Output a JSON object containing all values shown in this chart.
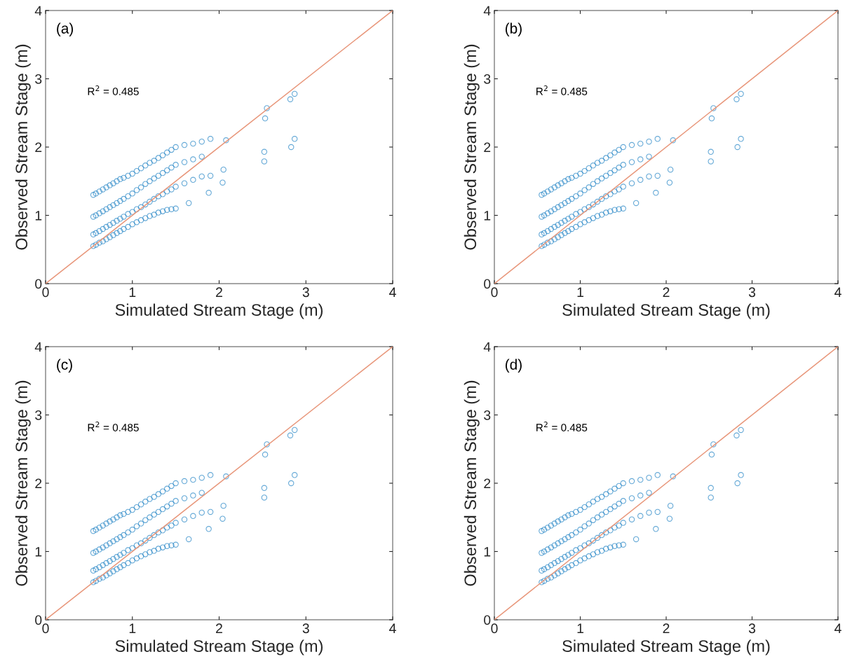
{
  "chart_data": [
    {
      "type": "scatter",
      "xlabel": "Simulated Stream Stage (m)",
      "ylabel": "Observed Stream Stage (m)",
      "annotations": [
        "(a)",
        "R$^{2}$ = 0.485"
      ],
      "xlim": [
        0,
        4
      ],
      "ylim": [
        0,
        4
      ],
      "xticks": [
        0,
        1,
        2,
        3,
        4
      ],
      "yticks": [
        0,
        1,
        2,
        3,
        4
      ],
      "grid": false,
      "series": [
        {
          "marker": "circle",
          "color": "#0072bd",
          "x": [
            0.55,
            0.58,
            0.62,
            0.66,
            0.7,
            0.74,
            0.78,
            0.82,
            0.86,
            0.9,
            0.95,
            1.0,
            1.05,
            1.1,
            1.15,
            1.2,
            1.25,
            1.3,
            1.35,
            1.4,
            1.45,
            1.5,
            1.6,
            1.7,
            1.8,
            1.9,
            0.55,
            0.58,
            0.62,
            0.66,
            0.7,
            0.74,
            0.78,
            0.82,
            0.86,
            0.9,
            0.95,
            1.0,
            1.05,
            1.1,
            1.15,
            1.2,
            1.25,
            1.3,
            1.35,
            1.4,
            1.45,
            1.5,
            1.6,
            1.7,
            1.8,
            0.55,
            0.58,
            0.62,
            0.66,
            0.7,
            0.74,
            0.78,
            0.82,
            0.86,
            0.9,
            0.95,
            1.0,
            1.05,
            1.1,
            1.15,
            1.2,
            1.25,
            1.3,
            1.35,
            1.4,
            1.45,
            1.5,
            1.6,
            1.7,
            1.8,
            0.55,
            0.58,
            0.62,
            0.66,
            0.7,
            0.74,
            0.78,
            0.82,
            0.86,
            0.9,
            0.95,
            1.0,
            1.05,
            1.1,
            1.15,
            1.2,
            1.25,
            1.3,
            1.35,
            1.4,
            1.45,
            1.5,
            2.55,
            2.53,
            2.52,
            2.52,
            2.82,
            2.87,
            2.87,
            2.83,
            2.08,
            2.05,
            2.04,
            1.9,
            1.88,
            1.65
          ],
          "values": [
            1.3,
            1.32,
            1.35,
            1.38,
            1.41,
            1.44,
            1.47,
            1.5,
            1.53,
            1.55,
            1.58,
            1.61,
            1.65,
            1.69,
            1.73,
            1.77,
            1.8,
            1.84,
            1.88,
            1.92,
            1.96,
            2.0,
            2.03,
            2.05,
            2.08,
            2.12,
            0.98,
            1.0,
            1.03,
            1.06,
            1.09,
            1.12,
            1.15,
            1.18,
            1.21,
            1.24,
            1.28,
            1.32,
            1.37,
            1.41,
            1.46,
            1.5,
            1.54,
            1.58,
            1.62,
            1.66,
            1.7,
            1.74,
            1.78,
            1.82,
            1.86,
            0.72,
            0.74,
            0.77,
            0.8,
            0.83,
            0.86,
            0.89,
            0.92,
            0.95,
            0.98,
            1.02,
            1.05,
            1.09,
            1.12,
            1.16,
            1.2,
            1.24,
            1.28,
            1.31,
            1.35,
            1.38,
            1.42,
            1.47,
            1.52,
            1.57,
            0.55,
            0.57,
            0.6,
            0.62,
            0.65,
            0.68,
            0.71,
            0.74,
            0.77,
            0.8,
            0.83,
            0.87,
            0.9,
            0.93,
            0.96,
            0.99,
            1.01,
            1.04,
            1.06,
            1.08,
            1.09,
            1.1,
            2.57,
            2.42,
            1.93,
            1.79,
            2.7,
            2.78,
            2.12,
            2.0,
            2.1,
            1.67,
            1.48,
            1.58,
            1.33,
            1.18
          ]
        },
        {
          "type": "line",
          "color": "#e8967a",
          "x": [
            0,
            4
          ],
          "values": [
            0,
            4
          ]
        }
      ]
    },
    {
      "type": "scatter",
      "xlabel": "Simulated Stream Stage (m)",
      "ylabel": "Observed Stream Stage (m)",
      "annotations": [
        "(b)",
        "R$^{2}$ = 0.485"
      ],
      "xlim": [
        0,
        4
      ],
      "ylim": [
        0,
        4
      ],
      "xticks": [
        0,
        1,
        2,
        3,
        4
      ],
      "yticks": [
        0,
        1,
        2,
        3,
        4
      ],
      "grid": false,
      "series": [
        {
          "marker": "circle",
          "color": "#0072bd",
          "x": [
            0.55,
            0.58,
            0.62,
            0.66,
            0.7,
            0.74,
            0.78,
            0.82,
            0.86,
            0.9,
            0.95,
            1.0,
            1.05,
            1.1,
            1.15,
            1.2,
            1.25,
            1.3,
            1.35,
            1.4,
            1.45,
            1.5,
            1.6,
            1.7,
            1.8,
            1.9,
            0.55,
            0.58,
            0.62,
            0.66,
            0.7,
            0.74,
            0.78,
            0.82,
            0.86,
            0.9,
            0.95,
            1.0,
            1.05,
            1.1,
            1.15,
            1.2,
            1.25,
            1.3,
            1.35,
            1.4,
            1.45,
            1.5,
            1.6,
            1.7,
            1.8,
            0.55,
            0.58,
            0.62,
            0.66,
            0.7,
            0.74,
            0.78,
            0.82,
            0.86,
            0.9,
            0.95,
            1.0,
            1.05,
            1.1,
            1.15,
            1.2,
            1.25,
            1.3,
            1.35,
            1.4,
            1.45,
            1.5,
            1.6,
            1.7,
            1.8,
            0.55,
            0.58,
            0.62,
            0.66,
            0.7,
            0.74,
            0.78,
            0.82,
            0.86,
            0.9,
            0.95,
            1.0,
            1.05,
            1.1,
            1.15,
            1.2,
            1.25,
            1.3,
            1.35,
            1.4,
            1.45,
            1.5,
            2.55,
            2.53,
            2.52,
            2.52,
            2.82,
            2.87,
            2.87,
            2.83,
            2.08,
            2.05,
            2.04,
            1.9,
            1.88,
            1.65
          ],
          "values": [
            1.3,
            1.32,
            1.35,
            1.38,
            1.41,
            1.44,
            1.47,
            1.5,
            1.53,
            1.55,
            1.58,
            1.61,
            1.65,
            1.69,
            1.73,
            1.77,
            1.8,
            1.84,
            1.88,
            1.92,
            1.96,
            2.0,
            2.03,
            2.05,
            2.08,
            2.12,
            0.98,
            1.0,
            1.03,
            1.06,
            1.09,
            1.12,
            1.15,
            1.18,
            1.21,
            1.24,
            1.28,
            1.32,
            1.37,
            1.41,
            1.46,
            1.5,
            1.54,
            1.58,
            1.62,
            1.66,
            1.7,
            1.74,
            1.78,
            1.82,
            1.86,
            0.72,
            0.74,
            0.77,
            0.8,
            0.83,
            0.86,
            0.89,
            0.92,
            0.95,
            0.98,
            1.02,
            1.05,
            1.09,
            1.12,
            1.16,
            1.2,
            1.24,
            1.28,
            1.31,
            1.35,
            1.38,
            1.42,
            1.47,
            1.52,
            1.57,
            0.55,
            0.57,
            0.6,
            0.62,
            0.65,
            0.68,
            0.71,
            0.74,
            0.77,
            0.8,
            0.83,
            0.87,
            0.9,
            0.93,
            0.96,
            0.99,
            1.01,
            1.04,
            1.06,
            1.08,
            1.09,
            1.1,
            2.57,
            2.42,
            1.93,
            1.79,
            2.7,
            2.78,
            2.12,
            2.0,
            2.1,
            1.67,
            1.48,
            1.58,
            1.33,
            1.18
          ]
        },
        {
          "type": "line",
          "color": "#e8967a",
          "x": [
            0,
            4
          ],
          "values": [
            0,
            4
          ]
        }
      ]
    },
    {
      "type": "scatter",
      "xlabel": "Simulated Stream Stage (m)",
      "ylabel": "Observed Stream Stage (m)",
      "annotations": [
        "(c)",
        "R$^{2}$ = 0.485"
      ],
      "xlim": [
        0,
        4
      ],
      "ylim": [
        0,
        4
      ],
      "xticks": [
        0,
        1,
        2,
        3,
        4
      ],
      "yticks": [
        0,
        1,
        2,
        3,
        4
      ],
      "grid": false,
      "series": [
        {
          "marker": "circle",
          "color": "#0072bd",
          "x": [
            0.55,
            0.58,
            0.62,
            0.66,
            0.7,
            0.74,
            0.78,
            0.82,
            0.86,
            0.9,
            0.95,
            1.0,
            1.05,
            1.1,
            1.15,
            1.2,
            1.25,
            1.3,
            1.35,
            1.4,
            1.45,
            1.5,
            1.6,
            1.7,
            1.8,
            1.9,
            0.55,
            0.58,
            0.62,
            0.66,
            0.7,
            0.74,
            0.78,
            0.82,
            0.86,
            0.9,
            0.95,
            1.0,
            1.05,
            1.1,
            1.15,
            1.2,
            1.25,
            1.3,
            1.35,
            1.4,
            1.45,
            1.5,
            1.6,
            1.7,
            1.8,
            0.55,
            0.58,
            0.62,
            0.66,
            0.7,
            0.74,
            0.78,
            0.82,
            0.86,
            0.9,
            0.95,
            1.0,
            1.05,
            1.1,
            1.15,
            1.2,
            1.25,
            1.3,
            1.35,
            1.4,
            1.45,
            1.5,
            1.6,
            1.7,
            1.8,
            0.55,
            0.58,
            0.62,
            0.66,
            0.7,
            0.74,
            0.78,
            0.82,
            0.86,
            0.9,
            0.95,
            1.0,
            1.05,
            1.1,
            1.15,
            1.2,
            1.25,
            1.3,
            1.35,
            1.4,
            1.45,
            1.5,
            2.55,
            2.53,
            2.52,
            2.52,
            2.82,
            2.87,
            2.87,
            2.83,
            2.08,
            2.05,
            2.04,
            1.9,
            1.88,
            1.65
          ],
          "values": [
            1.3,
            1.32,
            1.35,
            1.38,
            1.41,
            1.44,
            1.47,
            1.5,
            1.53,
            1.55,
            1.58,
            1.61,
            1.65,
            1.69,
            1.73,
            1.77,
            1.8,
            1.84,
            1.88,
            1.92,
            1.96,
            2.0,
            2.03,
            2.05,
            2.08,
            2.12,
            0.98,
            1.0,
            1.03,
            1.06,
            1.09,
            1.12,
            1.15,
            1.18,
            1.21,
            1.24,
            1.28,
            1.32,
            1.37,
            1.41,
            1.46,
            1.5,
            1.54,
            1.58,
            1.62,
            1.66,
            1.7,
            1.74,
            1.78,
            1.82,
            1.86,
            0.72,
            0.74,
            0.77,
            0.8,
            0.83,
            0.86,
            0.89,
            0.92,
            0.95,
            0.98,
            1.02,
            1.05,
            1.09,
            1.12,
            1.16,
            1.2,
            1.24,
            1.28,
            1.31,
            1.35,
            1.38,
            1.42,
            1.47,
            1.52,
            1.57,
            0.55,
            0.57,
            0.6,
            0.62,
            0.65,
            0.68,
            0.71,
            0.74,
            0.77,
            0.8,
            0.83,
            0.87,
            0.9,
            0.93,
            0.96,
            0.99,
            1.01,
            1.04,
            1.06,
            1.08,
            1.09,
            1.1,
            2.57,
            2.42,
            1.93,
            1.79,
            2.7,
            2.78,
            2.12,
            2.0,
            2.1,
            1.67,
            1.48,
            1.58,
            1.33,
            1.18
          ]
        },
        {
          "type": "line",
          "color": "#e8967a",
          "x": [
            0,
            4
          ],
          "values": [
            0,
            4
          ]
        }
      ]
    },
    {
      "type": "scatter",
      "xlabel": "Simulated Stream Stage (m)",
      "ylabel": "Observed Stream Stage (m)",
      "annotations": [
        "(d)",
        "R$^{2}$ = 0.485"
      ],
      "xlim": [
        0,
        4
      ],
      "ylim": [
        0,
        4
      ],
      "xticks": [
        0,
        1,
        2,
        3,
        4
      ],
      "yticks": [
        0,
        1,
        2,
        3,
        4
      ],
      "grid": false,
      "series": [
        {
          "marker": "circle",
          "color": "#0072bd",
          "x": [
            0.55,
            0.58,
            0.62,
            0.66,
            0.7,
            0.74,
            0.78,
            0.82,
            0.86,
            0.9,
            0.95,
            1.0,
            1.05,
            1.1,
            1.15,
            1.2,
            1.25,
            1.3,
            1.35,
            1.4,
            1.45,
            1.5,
            1.6,
            1.7,
            1.8,
            1.9,
            0.55,
            0.58,
            0.62,
            0.66,
            0.7,
            0.74,
            0.78,
            0.82,
            0.86,
            0.9,
            0.95,
            1.0,
            1.05,
            1.1,
            1.15,
            1.2,
            1.25,
            1.3,
            1.35,
            1.4,
            1.45,
            1.5,
            1.6,
            1.7,
            1.8,
            0.55,
            0.58,
            0.62,
            0.66,
            0.7,
            0.74,
            0.78,
            0.82,
            0.86,
            0.9,
            0.95,
            1.0,
            1.05,
            1.1,
            1.15,
            1.2,
            1.25,
            1.3,
            1.35,
            1.4,
            1.45,
            1.5,
            1.6,
            1.7,
            1.8,
            0.55,
            0.58,
            0.62,
            0.66,
            0.7,
            0.74,
            0.78,
            0.82,
            0.86,
            0.9,
            0.95,
            1.0,
            1.05,
            1.1,
            1.15,
            1.2,
            1.25,
            1.3,
            1.35,
            1.4,
            1.45,
            1.5,
            2.55,
            2.53,
            2.52,
            2.52,
            2.82,
            2.87,
            2.87,
            2.83,
            2.08,
            2.05,
            2.04,
            1.9,
            1.88,
            1.65
          ],
          "values": [
            1.3,
            1.32,
            1.35,
            1.38,
            1.41,
            1.44,
            1.47,
            1.5,
            1.53,
            1.55,
            1.58,
            1.61,
            1.65,
            1.69,
            1.73,
            1.77,
            1.8,
            1.84,
            1.88,
            1.92,
            1.96,
            2.0,
            2.03,
            2.05,
            2.08,
            2.12,
            0.98,
            1.0,
            1.03,
            1.06,
            1.09,
            1.12,
            1.15,
            1.18,
            1.21,
            1.24,
            1.28,
            1.32,
            1.37,
            1.41,
            1.46,
            1.5,
            1.54,
            1.58,
            1.62,
            1.66,
            1.7,
            1.74,
            1.78,
            1.82,
            1.86,
            0.72,
            0.74,
            0.77,
            0.8,
            0.83,
            0.86,
            0.89,
            0.92,
            0.95,
            0.98,
            1.02,
            1.05,
            1.09,
            1.12,
            1.16,
            1.2,
            1.24,
            1.28,
            1.31,
            1.35,
            1.38,
            1.42,
            1.47,
            1.52,
            1.57,
            0.55,
            0.57,
            0.6,
            0.62,
            0.65,
            0.68,
            0.71,
            0.74,
            0.77,
            0.8,
            0.83,
            0.87,
            0.9,
            0.93,
            0.96,
            0.99,
            1.01,
            1.04,
            1.06,
            1.08,
            1.09,
            1.1,
            2.57,
            2.42,
            1.93,
            1.79,
            2.7,
            2.78,
            2.12,
            2.0,
            2.1,
            1.67,
            1.48,
            1.58,
            1.33,
            1.18
          ]
        },
        {
          "type": "line",
          "color": "#e8967a",
          "x": [
            0,
            4
          ],
          "values": [
            0,
            4
          ]
        }
      ]
    }
  ]
}
